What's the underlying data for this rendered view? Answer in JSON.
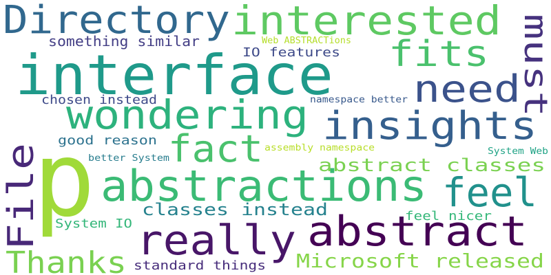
{
  "words": [
    {
      "text": "p",
      "color": "#a0da39"
    },
    {
      "text": "interface",
      "color": "#1f9a8a"
    },
    {
      "text": "abstractions",
      "color": "#3bbb75"
    },
    {
      "text": "Directory",
      "color": "#31688e"
    },
    {
      "text": "interested",
      "color": "#5ec962"
    },
    {
      "text": "wondering",
      "color": "#2db27d"
    },
    {
      "text": "insights",
      "color": "#355f8d"
    },
    {
      "text": "really",
      "color": "#481668"
    },
    {
      "text": "abstract",
      "color": "#440154"
    },
    {
      "text": "File",
      "color": "#482878"
    },
    {
      "text": "need",
      "color": "#3b528b"
    },
    {
      "text": "fits",
      "color": "#4ac16d"
    },
    {
      "text": "fact",
      "color": "#4ac16d"
    },
    {
      "text": "feel",
      "color": "#21918c"
    },
    {
      "text": "must",
      "color": "#46327e"
    },
    {
      "text": "Thanks",
      "color": "#7ad151"
    },
    {
      "text": "abstract classes",
      "color": "#7ad151"
    },
    {
      "text": "Microsoft released",
      "color": "#86d549"
    },
    {
      "text": "classes instead",
      "color": "#26828e"
    },
    {
      "text": "something similar",
      "color": "#433e85"
    },
    {
      "text": "IO features",
      "color": "#3e4a89"
    },
    {
      "text": "chosen instead",
      "color": "#3e4a89"
    },
    {
      "text": "good reason",
      "color": "#2c728e"
    },
    {
      "text": "System IO",
      "color": "#34b679"
    },
    {
      "text": "standard things",
      "color": "#472d7b"
    },
    {
      "text": "feel nicer",
      "color": "#35b779"
    },
    {
      "text": "Web ABSTRACTions",
      "color": "#b5de2b"
    },
    {
      "text": "namespace better",
      "color": "#38598c"
    },
    {
      "text": "assembly namespace",
      "color": "#b8de29"
    },
    {
      "text": "better System",
      "color": "#287d8e"
    },
    {
      "text": "System Web",
      "color": "#20a386"
    }
  ]
}
